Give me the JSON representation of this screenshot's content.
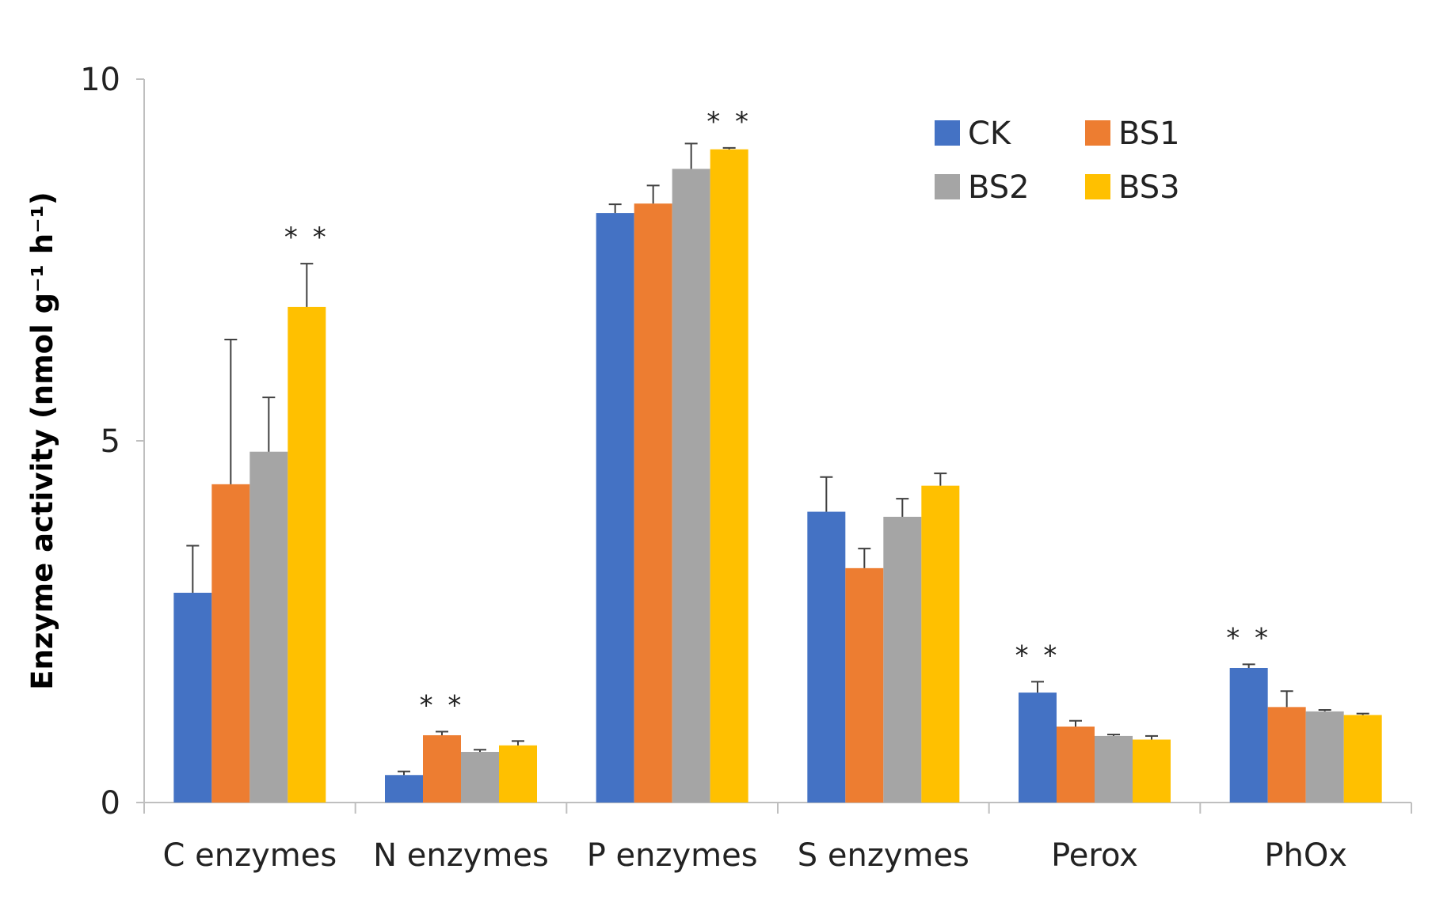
{
  "chart_data": {
    "type": "bar",
    "title": "",
    "xlabel": "",
    "ylabel": "Enzyme activity (nmol g⁻¹ h⁻¹)",
    "ylim": [
      0,
      10
    ],
    "yticks": [
      0,
      5,
      10
    ],
    "categories": [
      "C enzymes",
      "N enzymes",
      "P enzymes",
      "S enzymes",
      "Perox",
      "PhOx"
    ],
    "series": [
      {
        "name": "CK",
        "color": "#4472C4",
        "values": [
          2.9,
          0.38,
          8.15,
          4.02,
          1.52,
          1.86
        ],
        "errors": [
          0.65,
          0.05,
          0.12,
          0.48,
          0.15,
          0.05
        ]
      },
      {
        "name": "BS1",
        "color": "#ED7D31",
        "values": [
          4.4,
          0.93,
          8.28,
          3.24,
          1.05,
          1.32
        ],
        "errors": [
          2.0,
          0.05,
          0.25,
          0.27,
          0.08,
          0.22
        ]
      },
      {
        "name": "BS2",
        "color": "#A5A5A5",
        "values": [
          4.85,
          0.7,
          8.76,
          3.95,
          0.92,
          1.26
        ],
        "errors": [
          0.75,
          0.03,
          0.35,
          0.25,
          0.02,
          0.02
        ]
      },
      {
        "name": "BS3",
        "color": "#FFC000",
        "values": [
          6.85,
          0.79,
          9.03,
          4.38,
          0.87,
          1.21
        ],
        "errors": [
          0.6,
          0.06,
          0.02,
          0.17,
          0.05,
          0.02
        ]
      }
    ],
    "annotations": [
      {
        "text": "* *",
        "category": "C enzymes",
        "series": "BS3"
      },
      {
        "text": "* *",
        "category": "N enzymes",
        "series": "BS1"
      },
      {
        "text": "* *",
        "category": "P enzymes",
        "series": "BS3"
      },
      {
        "text": "* *",
        "category": "Perox",
        "series": "CK"
      },
      {
        "text": "* *",
        "category": "PhOx",
        "series": "CK"
      }
    ],
    "legend": {
      "placement": "top-right",
      "columns": 2,
      "entries": [
        "CK",
        "BS1",
        "BS2",
        "BS3"
      ]
    },
    "grid": false
  }
}
